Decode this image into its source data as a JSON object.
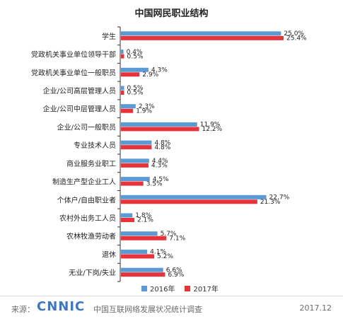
{
  "title": "中国网民职业结构",
  "colors": {
    "series_2016": "#5b9bd5",
    "series_2017": "#e8333b",
    "axis": "#333333",
    "grid": "#dddddd"
  },
  "chart_data": {
    "type": "bar",
    "orientation": "horizontal",
    "title": "中国网民职业结构",
    "xlabel": "",
    "ylabel": "",
    "xlim": [
      0,
      25.4
    ],
    "grid": false,
    "legend_position": "bottom-right",
    "categories": [
      "学生",
      "党政机关事业单位领导干部",
      "党政机关事业单位一般职员",
      "企业/公司高层管理人员",
      "企业/公司中层管理人员",
      "企业/公司一般职员",
      "专业技术人员",
      "商业服务业职工",
      "制造生产型企业工人",
      "个体户/自由职业者",
      "农村外出务工人员",
      "农林牧渔劳动者",
      "退休",
      "无业/下岗/失业"
    ],
    "series": [
      {
        "name": "2016年",
        "values": [
          25.0,
          0.4,
          4.3,
          0.5,
          2.3,
          11.9,
          4.8,
          4.4,
          4.5,
          22.7,
          1.8,
          5.7,
          4.1,
          6.6
        ],
        "labels": [
          "25.0%",
          "0.4%",
          "4.3%",
          "0.5%",
          "2.3%",
          "11.9%",
          "4.8%",
          "4.4%",
          "4.5%",
          "22.7%",
          "1.8%",
          "5.7%",
          "4.1%",
          "6.6%"
        ]
      },
      {
        "name": "2017年",
        "values": [
          25.4,
          0.5,
          2.9,
          0.5,
          1.9,
          12.2,
          4.8,
          4.3,
          3.5,
          21.3,
          2.1,
          7.1,
          5.2,
          6.9
        ],
        "labels": [
          "25.4%",
          "0.5%",
          "2.9%",
          "0.5%",
          "1.9%",
          "12.2%",
          "4.8%",
          "4.3%",
          "3.5%",
          "21.3%",
          "2.1%",
          "7.1%",
          "5.2%",
          "6.9%"
        ]
      }
    ]
  },
  "footer": {
    "source_label": "来源：",
    "logo": "CNNIC",
    "source_text": "中国互联网络发展状况统计调查",
    "date": "2017.12"
  }
}
